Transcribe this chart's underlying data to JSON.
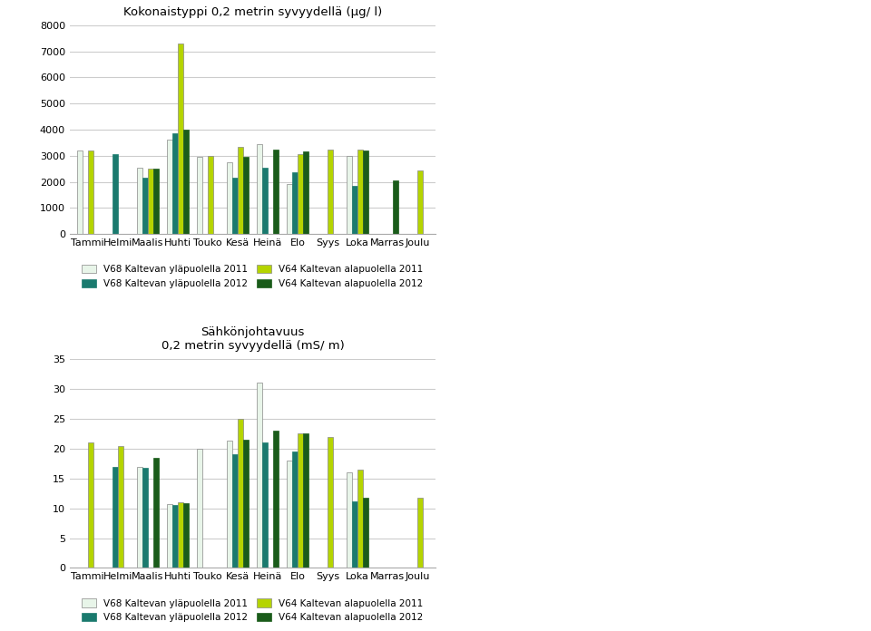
{
  "months": [
    "Tammi",
    "Helmi",
    "Maalis",
    "Huhti",
    "Touko",
    "Kesä",
    "Heinä",
    "Elo",
    "Syys",
    "Loka",
    "Marras",
    "Joulu"
  ],
  "chart1": {
    "title": "Kokonaistyppi 0,2 metrin syvyydellä (μg/ l)",
    "ylim": [
      0,
      8000
    ],
    "yticks": [
      0,
      1000,
      2000,
      3000,
      4000,
      5000,
      6000,
      7000,
      8000
    ],
    "series": {
      "v68_2011": [
        3200,
        null,
        2550,
        3600,
        2950,
        2750,
        3450,
        1900,
        null,
        3000,
        null,
        null
      ],
      "v68_2012": [
        null,
        3050,
        2150,
        3850,
        null,
        2150,
        2550,
        2350,
        null,
        1850,
        null,
        null
      ],
      "v64_2011": [
        3200,
        null,
        2500,
        7300,
        3000,
        3350,
        null,
        3050,
        3250,
        3250,
        null,
        2450
      ],
      "v64_2012": [
        null,
        null,
        2500,
        4000,
        null,
        2950,
        3250,
        3150,
        null,
        3200,
        2050,
        null
      ]
    }
  },
  "chart2": {
    "title": "Sähkönjohtavuus\n0,2 metrin syvyydellä (mS/ m)",
    "ylim": [
      0,
      35
    ],
    "yticks": [
      0,
      5,
      10,
      15,
      20,
      25,
      30,
      35
    ],
    "series": {
      "v68_2011": [
        null,
        null,
        17.0,
        10.7,
        20.0,
        21.3,
        31.1,
        18.0,
        null,
        16.0,
        null,
        null
      ],
      "v68_2012": [
        null,
        17.0,
        16.8,
        10.5,
        null,
        19.0,
        21.0,
        19.5,
        null,
        11.1,
        null,
        null
      ],
      "v64_2011": [
        21.0,
        20.5,
        null,
        11.0,
        null,
        25.0,
        null,
        22.5,
        22.0,
        16.5,
        null,
        11.8
      ],
      "v64_2012": [
        null,
        null,
        18.5,
        10.9,
        null,
        21.5,
        23.0,
        22.5,
        null,
        11.7,
        null,
        null
      ]
    }
  },
  "colors": {
    "v68_2011": "#e8f5e9",
    "v68_2012": "#1a7a6e",
    "v64_2011": "#b5d400",
    "v64_2012": "#1a5c1a"
  },
  "edge_colors": {
    "v68_2011": "#888888",
    "v68_2012": "#1a7a6e",
    "v64_2011": "#888888",
    "v64_2012": "#1a5c1a"
  },
  "legend": [
    "V68 Kaltevan yläpuolella 2011",
    "V68 Kaltevan yläpuolella 2012",
    "V64 Kaltevan alapuolella 2011",
    "V64 Kaltevan alapuolella 2012"
  ],
  "background_color": "#ffffff",
  "grid_color": "#cccccc"
}
